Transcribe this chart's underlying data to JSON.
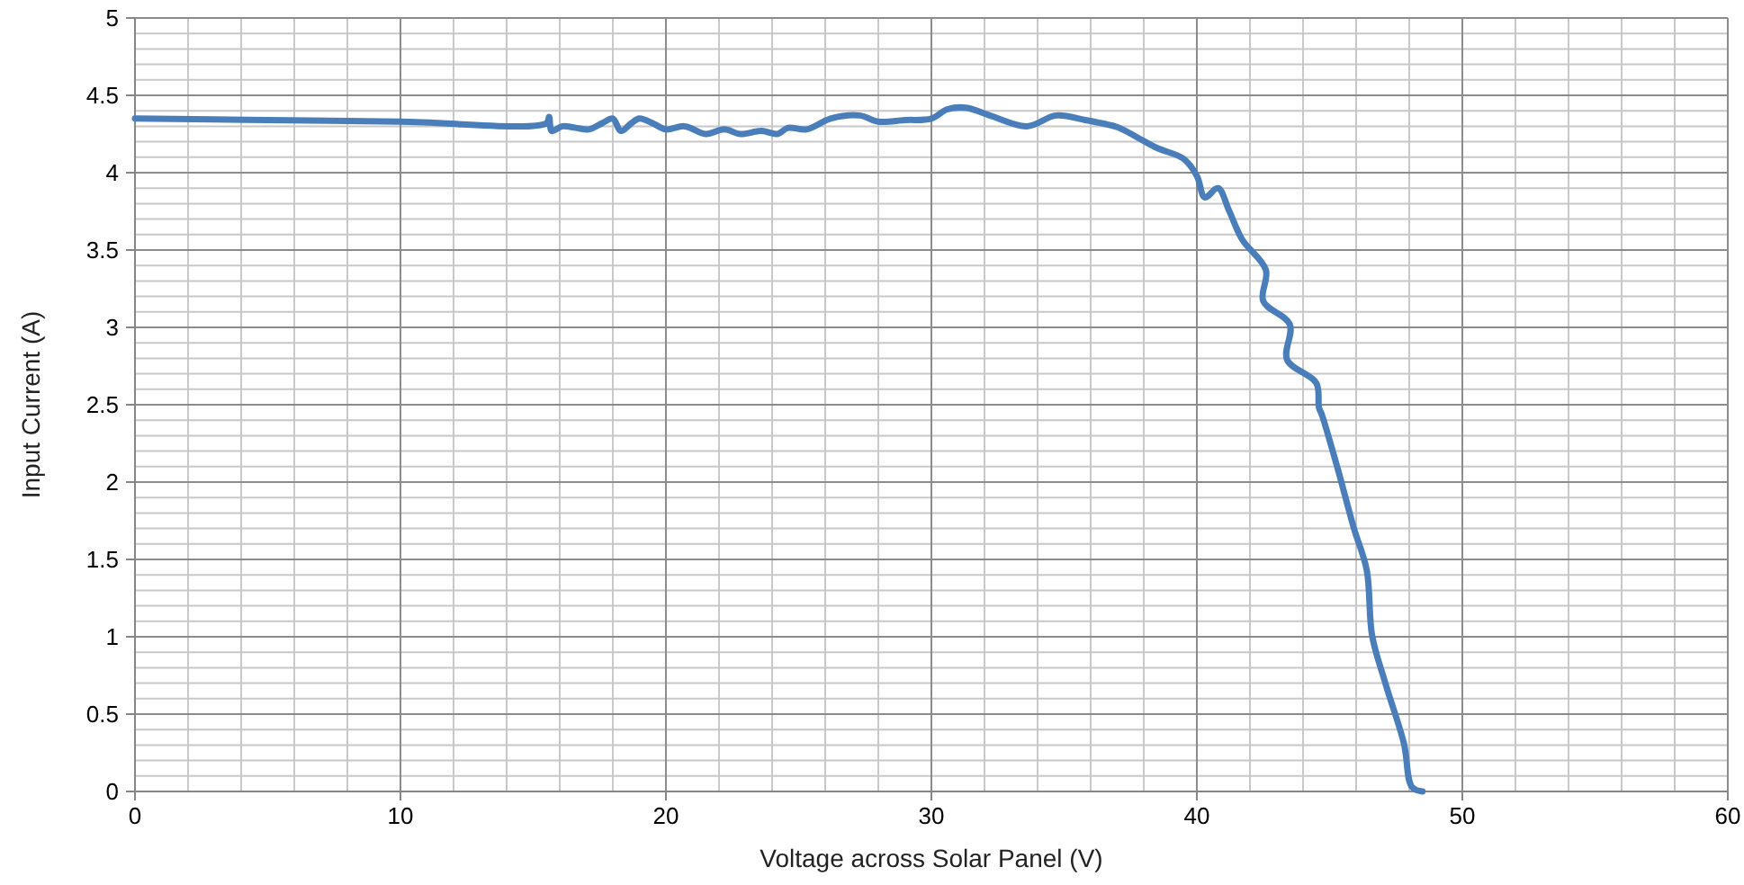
{
  "chart_data": {
    "type": "line",
    "xlabel": "Voltage across Solar Panel (V)",
    "ylabel": "Input Current (A)",
    "xlim": [
      0,
      60
    ],
    "xticks": [
      0,
      10,
      20,
      30,
      40,
      50,
      60
    ],
    "ylim": [
      0,
      5
    ],
    "yticks": [
      0,
      0.5,
      1,
      1.5,
      2,
      2.5,
      3,
      3.5,
      4,
      4.5,
      5
    ],
    "grid": true,
    "marker": "none",
    "line_style": "solid",
    "series": [
      {
        "color": "#4a7ebb",
        "x": [
          0,
          5,
          10,
          15.5,
          15.6,
          15.7,
          16.1,
          16.6,
          17.1,
          17.6,
          18.0,
          18.3,
          18.7,
          19.0,
          19.5,
          20.0,
          20.7,
          21.5,
          22.2,
          22.8,
          23.6,
          24.2,
          24.6,
          25.3,
          26.2,
          27.3,
          28.0,
          29.0,
          30.0,
          30.6,
          31.3,
          32.2,
          33.6,
          34.7,
          35.8,
          36.9,
          37.2,
          38.5,
          39.5,
          40.0,
          40.3,
          40.8,
          41.2,
          41.7,
          42.6,
          42.5,
          43.5,
          43.4,
          44.5,
          44.6,
          44.7,
          45.3,
          45.9,
          46.4,
          46.6,
          47.1,
          47.8,
          48.1,
          48.5
        ],
        "values": [
          4.35,
          4.34,
          4.33,
          4.32,
          4.36,
          4.27,
          4.3,
          4.29,
          4.28,
          4.32,
          4.35,
          4.27,
          4.32,
          4.35,
          4.32,
          4.28,
          4.3,
          4.25,
          4.28,
          4.25,
          4.27,
          4.25,
          4.29,
          4.28,
          4.35,
          4.37,
          4.33,
          4.34,
          4.35,
          4.41,
          4.42,
          4.37,
          4.3,
          4.37,
          4.34,
          4.3,
          4.28,
          4.16,
          4.09,
          3.98,
          3.84,
          3.9,
          3.76,
          3.57,
          3.37,
          3.17,
          3.02,
          2.79,
          2.64,
          2.48,
          2.44,
          2.09,
          1.71,
          1.43,
          1.01,
          0.7,
          0.31,
          0.03,
          0
        ]
      }
    ]
  }
}
